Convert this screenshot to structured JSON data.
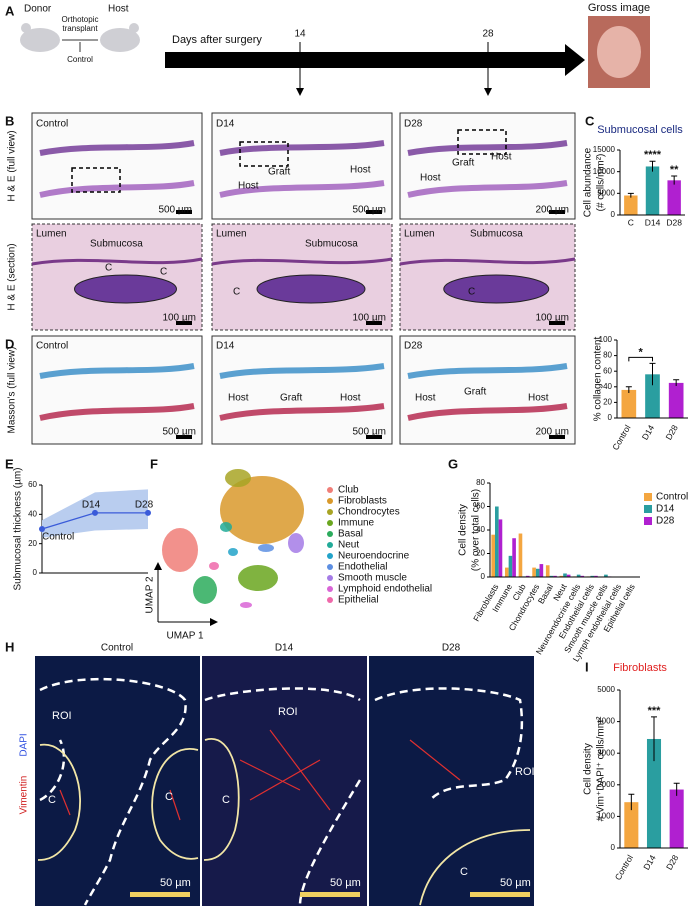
{
  "panel_letters": [
    "A",
    "B",
    "C",
    "D",
    "E",
    "F",
    "G",
    "H",
    "I"
  ],
  "A": {
    "donor": "Donor",
    "host": "Host",
    "transplant": [
      "Orthotopic",
      "transplant"
    ],
    "control": "Control",
    "timeline": "Days after surgery",
    "day_marks": [
      "14",
      "28"
    ],
    "gross": "Gross image"
  },
  "B": {
    "row_labels": [
      "H & E (full view)",
      "H & E (section)",
      "Masson's (full view)"
    ],
    "labels": [
      "Control",
      "500 µm",
      "D14",
      "Graft",
      "Host",
      "Host",
      "500 µm",
      "D28",
      "Graft",
      "Host",
      "Host",
      "200 µm",
      "Lumen",
      "Submucosa",
      "C",
      "C",
      "100 µm",
      "Lumen",
      "Submucosa",
      "C",
      "100 µm",
      "Lumen",
      "Submucosa",
      "C",
      "100 µm",
      "Control",
      "500 µm",
      "D14",
      "Host",
      "Graft",
      "Host",
      "500 µm",
      "D28",
      "Host",
      "Graft",
      "Host",
      "200 µm"
    ]
  },
  "F": {
    "xlabel": "UMAP 1",
    "ylabel": "UMAP 2",
    "clusters": [
      {
        "name": "Club",
        "color": "#f07e78"
      },
      {
        "name": "Fibroblasts",
        "color": "#d9992b"
      },
      {
        "name": "Chondrocytes",
        "color": "#a8a424"
      },
      {
        "name": "Immune",
        "color": "#6aa61f"
      },
      {
        "name": "Basal",
        "color": "#2bab5c"
      },
      {
        "name": "Neut",
        "color": "#21aa98"
      },
      {
        "name": "Neuroendocrine",
        "color": "#22a3c9"
      },
      {
        "name": "Endothelial",
        "color": "#5d8fe2"
      },
      {
        "name": "Smooth muscle",
        "color": "#a57be6"
      },
      {
        "name": "Lymphoid endothelial",
        "color": "#d965d6"
      },
      {
        "name": "Epithelial",
        "color": "#ef69aa"
      }
    ]
  },
  "H": {
    "columns": [
      "Control",
      "D14",
      "D28"
    ],
    "stain": [
      "Vimentin",
      "DAPI"
    ],
    "labels": [
      "ROI",
      "C",
      "C",
      "50 µm",
      "ROI",
      "C",
      "50 µm",
      "ROI",
      "C",
      "50 µm"
    ]
  },
  "chart_data": [
    {
      "type": "bar",
      "title": "Submucosal cells",
      "ylabel": [
        "Cell abundance",
        "(# cells/mm²)"
      ],
      "categories": [
        "C",
        "D14",
        "D28"
      ],
      "values": [
        4500,
        11200,
        8000
      ],
      "errors": [
        500,
        1200,
        1000
      ],
      "value_annotations": [
        null,
        "****",
        "**"
      ],
      "colors": [
        "#f4a640",
        "#2a9ea0",
        "#b020d0"
      ],
      "ylim": [
        0,
        15000
      ],
      "yticks": [
        0,
        5000,
        10000,
        15000
      ]
    },
    {
      "type": "bar",
      "ylabel": [
        "% collagen content"
      ],
      "categories": [
        "Control",
        "D14",
        "D28"
      ],
      "values": [
        36,
        56,
        45
      ],
      "errors": [
        4,
        14,
        4
      ],
      "bracket_label": "*",
      "colors": [
        "#f4a640",
        "#2a9ea0",
        "#b020d0"
      ],
      "ylim": [
        0,
        100
      ],
      "yticks": [
        0,
        20,
        40,
        60,
        80,
        100
      ]
    },
    {
      "type": "line",
      "ylabel": [
        "Submucosal thickness (µm)"
      ],
      "categories": [
        "Control",
        "D14",
        "D28"
      ],
      "values": [
        30,
        41,
        41
      ],
      "band_lower": [
        24,
        29,
        30
      ],
      "band_upper": [
        36,
        55,
        57
      ],
      "color": "#3a5bd9",
      "band_color": "#b9cdef",
      "ylim": [
        0,
        60
      ],
      "yticks": [
        0,
        20,
        40,
        60
      ]
    },
    {
      "type": "bar",
      "ylabel": [
        "Cell density",
        "(% over total cells)"
      ],
      "categories": [
        "Fibroblasts",
        "Immune",
        "Club",
        "Chondrocytes",
        "Basal",
        "Neut",
        "Neuroendocrine cells",
        "Endothelial cells",
        "Smooth muscle cells",
        "Lymph endothelial cells",
        "Epithelial cells"
      ],
      "series": [
        {
          "name": "Control",
          "color": "#f4a640",
          "values": [
            36,
            8,
            37,
            8,
            10,
            1,
            0.5,
            0.5,
            0.3,
            0.2,
            0.1
          ]
        },
        {
          "name": "D14",
          "color": "#2a9ea0",
          "values": [
            60,
            18,
            0.5,
            7,
            1,
            3,
            2,
            1,
            2,
            0.3,
            0.1
          ]
        },
        {
          "name": "D28",
          "color": "#b020d0",
          "values": [
            49,
            33,
            1,
            11,
            1,
            2,
            1,
            1,
            0.5,
            0.3,
            0.1
          ]
        }
      ],
      "ylim": [
        0,
        80
      ],
      "yticks": [
        0,
        20,
        40,
        60,
        80
      ]
    },
    {
      "type": "bar",
      "title": "Fibroblasts",
      "title_color": "#e02020",
      "ylabel": [
        "Cell density",
        "# Vim⁺DAPI⁺ cells/mm²"
      ],
      "categories": [
        "Control",
        "D14",
        "D28"
      ],
      "values": [
        1450,
        3450,
        1850
      ],
      "errors": [
        250,
        700,
        200
      ],
      "value_annotations": [
        null,
        "***",
        null
      ],
      "colors": [
        "#f4a640",
        "#2a9ea0",
        "#b020d0"
      ],
      "ylim": [
        0,
        5000
      ],
      "yticks": [
        0,
        1000,
        2000,
        3000,
        4000,
        5000
      ]
    }
  ]
}
